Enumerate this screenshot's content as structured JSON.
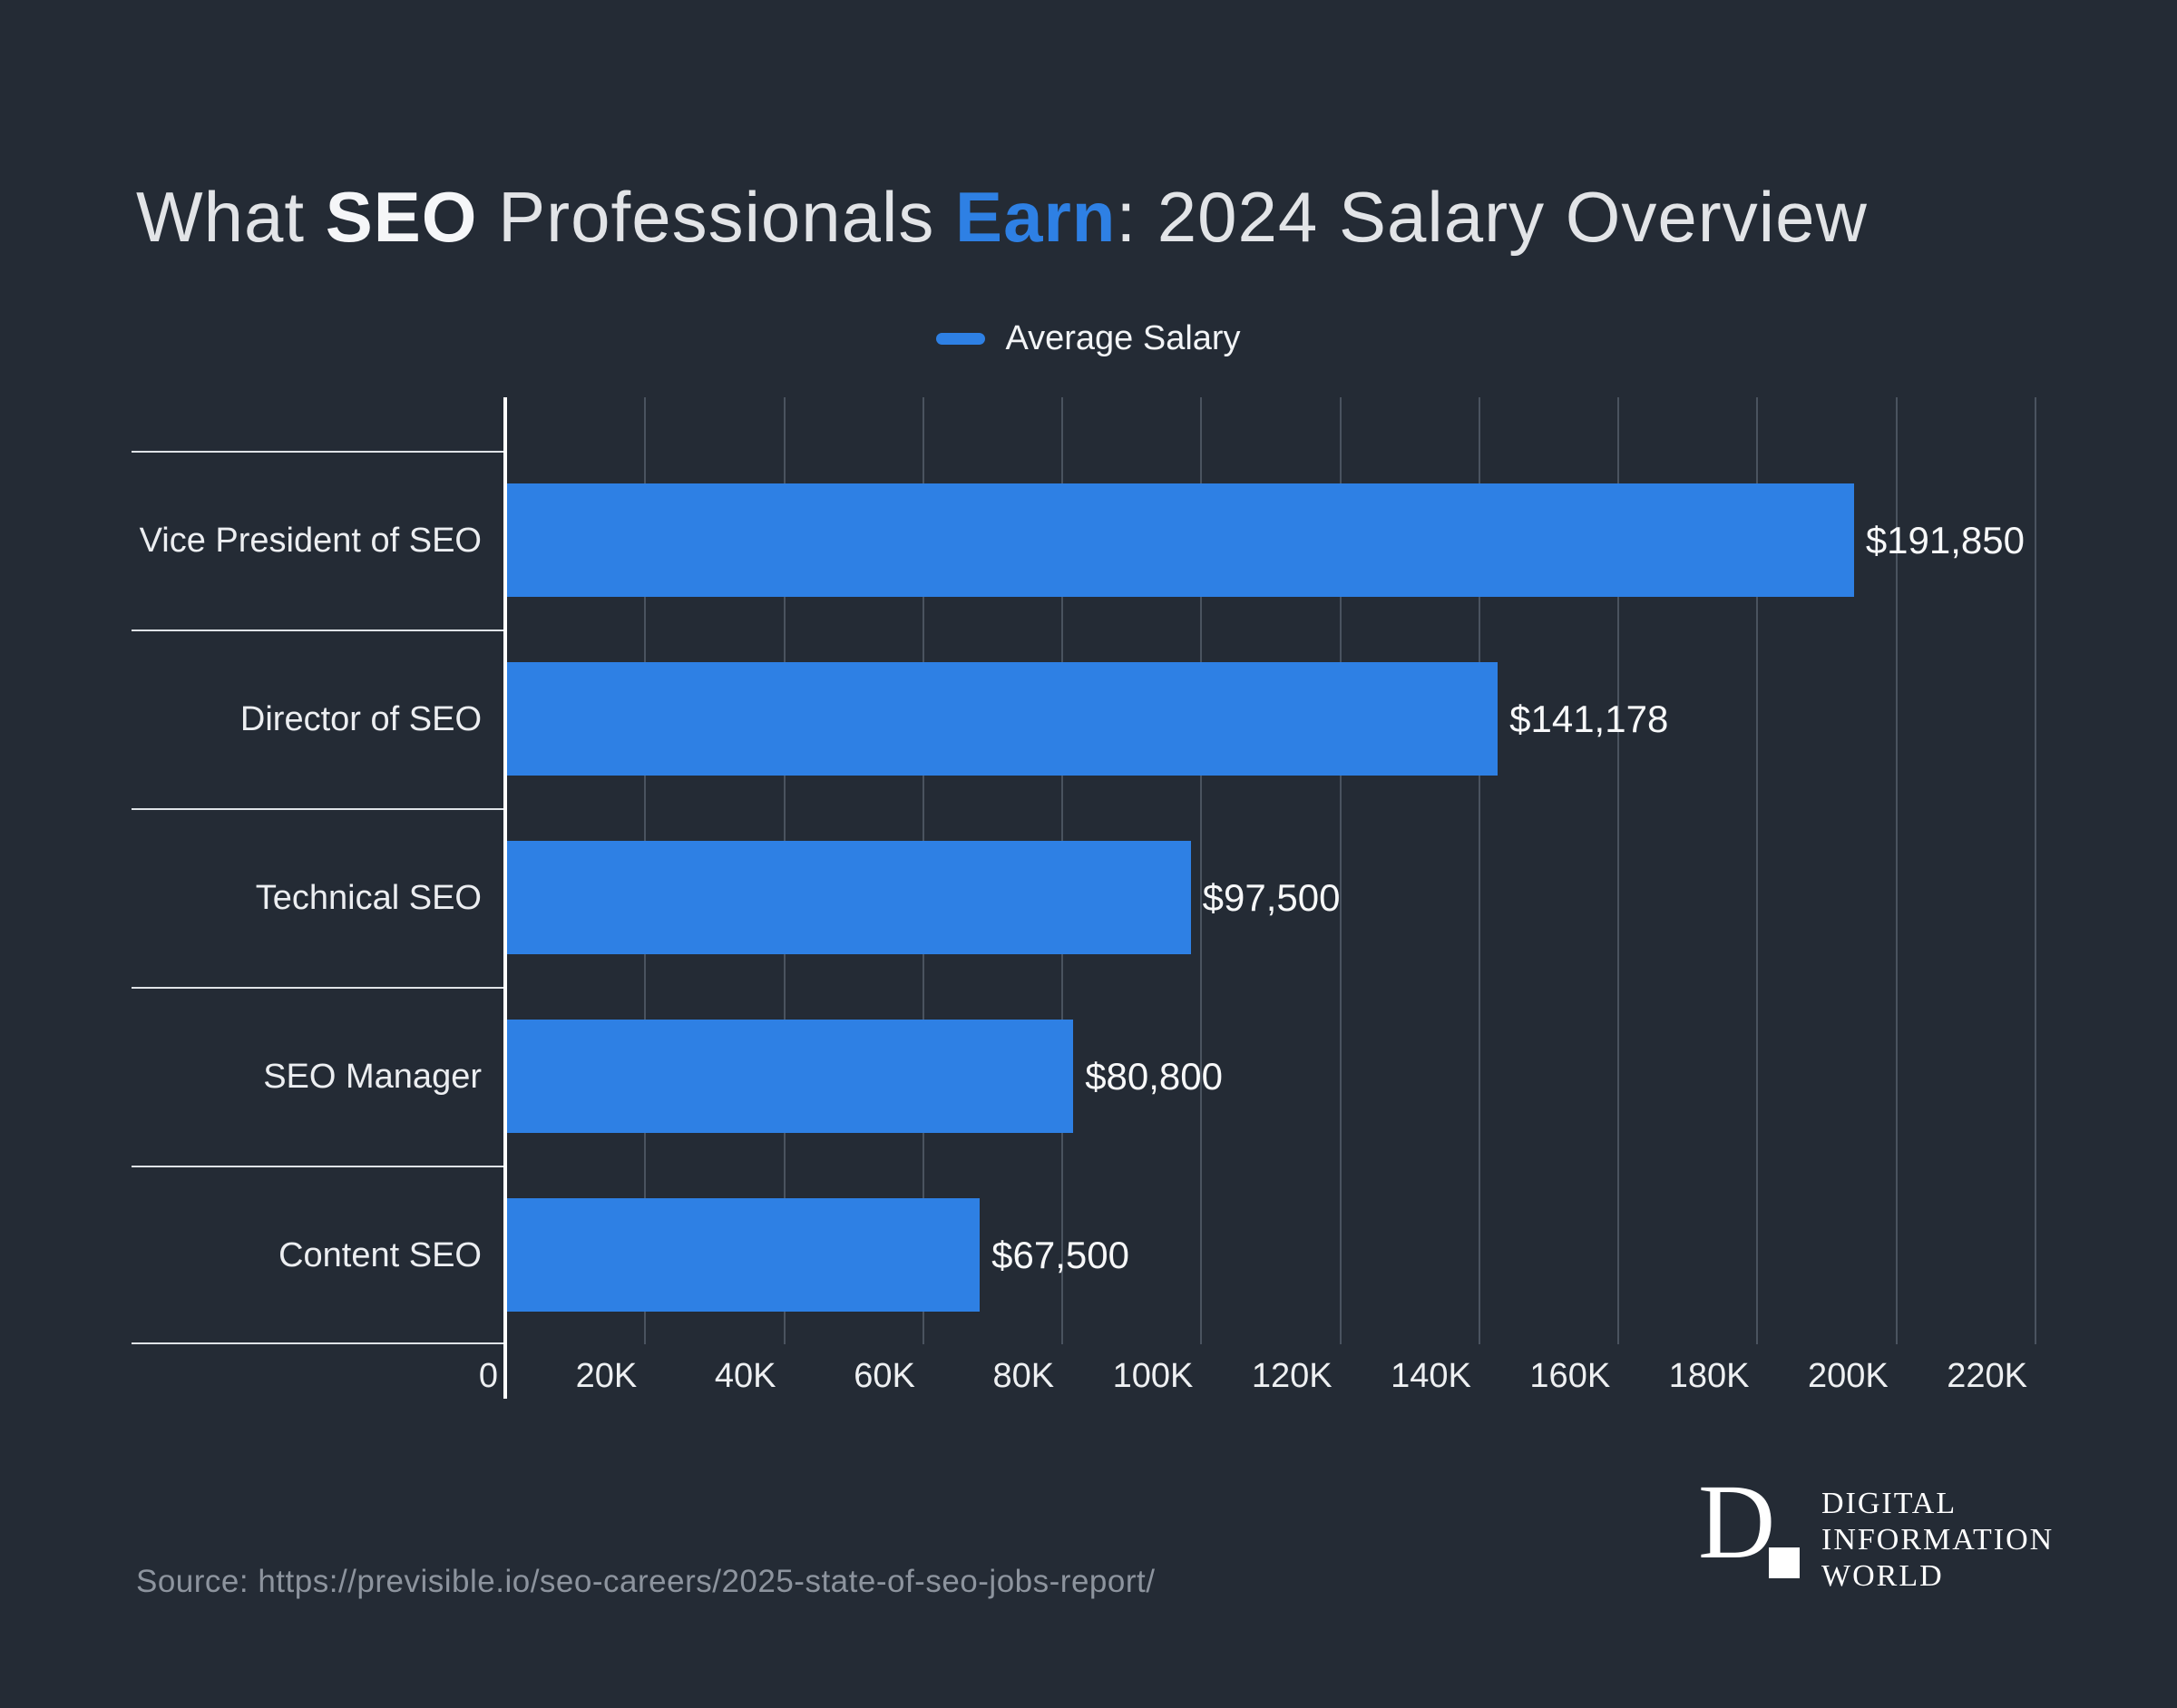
{
  "title": {
    "part1": "What ",
    "part2": "SEO",
    "part3": " Professionals ",
    "part4": "Earn",
    "part5": ": 2024 Salary Overview"
  },
  "legend": {
    "label": "Average Salary"
  },
  "chart_data": {
    "type": "bar",
    "orientation": "horizontal",
    "title": "What SEO Professionals Earn: 2024 Salary Overview",
    "series_name": "Average Salary",
    "categories": [
      "Vice President of SEO",
      "Director of SEO",
      "Technical SEO",
      "SEO Manager",
      "Content SEO"
    ],
    "values": [
      191850,
      141178,
      97500,
      80800,
      67500
    ],
    "value_labels": [
      "$191,850",
      "$141,178",
      "$97,500",
      "$80,800",
      "$67,500"
    ],
    "xlabel": "",
    "ylabel": "",
    "xlim": [
      0,
      220000
    ],
    "x_ticks": [
      "0",
      "20K",
      "40K",
      "60K",
      "80K",
      "100K",
      "120K",
      "140K",
      "160K",
      "180K",
      "200K",
      "220K"
    ],
    "grid": true,
    "legend_position": "top-center",
    "bar_color": "#2e80e4"
  },
  "source": {
    "text": "Source: https://previsible.io/seo-careers/2025-state-of-seo-jobs-report/"
  },
  "logo": {
    "monogram": "D",
    "line1": "DIGITAL",
    "line2": "INFORMATION",
    "line3": "WORLD"
  },
  "colors": {
    "background": "#242b35",
    "bar": "#2e80e4",
    "accent_text": "#2e80e4",
    "gridline": "#4a535f",
    "axis": "#ffffff",
    "divider": "#dfe3e7",
    "source_text": "#8d949e"
  }
}
